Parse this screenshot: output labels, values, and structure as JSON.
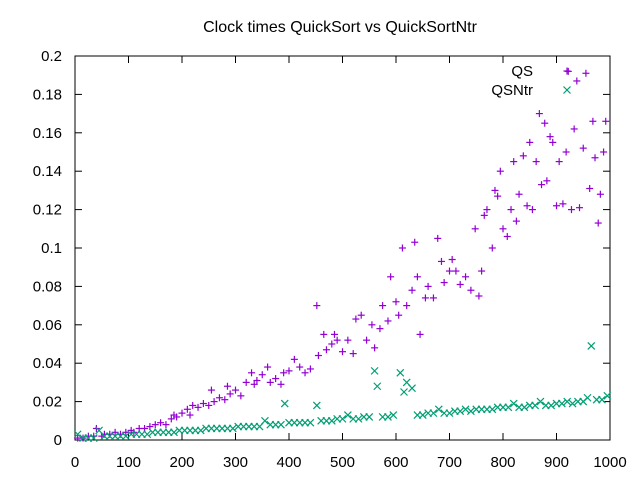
{
  "chart_data": {
    "type": "scatter",
    "title": "Clock times QuickSort vs QuickSortNtr",
    "xlabel": "",
    "ylabel": "",
    "xlim": [
      0,
      1000
    ],
    "ylim": [
      0,
      0.2
    ],
    "x_ticks": [
      0,
      100,
      200,
      300,
      400,
      500,
      600,
      700,
      800,
      900,
      1000
    ],
    "y_ticks": [
      0,
      0.02,
      0.04,
      0.06,
      0.08,
      0.1,
      0.12,
      0.14,
      0.16,
      0.18,
      0.2
    ],
    "grid": false,
    "legend_position": "top-right",
    "series": [
      {
        "name": "QS",
        "marker": "plus",
        "color": "#9400d3",
        "points": [
          [
            5,
            0.001
          ],
          [
            15,
            0.001
          ],
          [
            25,
            0.002
          ],
          [
            35,
            0.002
          ],
          [
            40,
            0.006
          ],
          [
            50,
            0.002
          ],
          [
            55,
            0.003
          ],
          [
            65,
            0.003
          ],
          [
            75,
            0.004
          ],
          [
            85,
            0.003
          ],
          [
            95,
            0.004
          ],
          [
            105,
            0.005
          ],
          [
            110,
            0.004
          ],
          [
            120,
            0.006
          ],
          [
            130,
            0.006
          ],
          [
            140,
            0.007
          ],
          [
            150,
            0.008
          ],
          [
            160,
            0.009
          ],
          [
            170,
            0.008
          ],
          [
            180,
            0.011
          ],
          [
            185,
            0.013
          ],
          [
            190,
            0.012
          ],
          [
            200,
            0.014
          ],
          [
            210,
            0.016
          ],
          [
            215,
            0.013
          ],
          [
            220,
            0.018
          ],
          [
            230,
            0.017
          ],
          [
            240,
            0.019
          ],
          [
            250,
            0.018
          ],
          [
            255,
            0.026
          ],
          [
            260,
            0.02
          ],
          [
            270,
            0.022
          ],
          [
            280,
            0.021
          ],
          [
            285,
            0.028
          ],
          [
            290,
            0.024
          ],
          [
            300,
            0.026
          ],
          [
            310,
            0.023
          ],
          [
            320,
            0.03
          ],
          [
            330,
            0.035
          ],
          [
            335,
            0.029
          ],
          [
            340,
            0.031
          ],
          [
            350,
            0.034
          ],
          [
            360,
            0.038
          ],
          [
            365,
            0.03
          ],
          [
            375,
            0.032
          ],
          [
            385,
            0.029
          ],
          [
            390,
            0.035
          ],
          [
            400,
            0.036
          ],
          [
            410,
            0.042
          ],
          [
            420,
            0.038
          ],
          [
            430,
            0.035
          ],
          [
            440,
            0.037
          ],
          [
            452,
            0.07
          ],
          [
            455,
            0.044
          ],
          [
            465,
            0.055
          ],
          [
            470,
            0.047
          ],
          [
            480,
            0.05
          ],
          [
            485,
            0.055
          ],
          [
            490,
            0.052
          ],
          [
            500,
            0.046
          ],
          [
            510,
            0.052
          ],
          [
            520,
            0.045
          ],
          [
            525,
            0.063
          ],
          [
            535,
            0.065
          ],
          [
            545,
            0.052
          ],
          [
            555,
            0.06
          ],
          [
            560,
            0.048
          ],
          [
            570,
            0.058
          ],
          [
            575,
            0.07
          ],
          [
            585,
            0.062
          ],
          [
            590,
            0.085
          ],
          [
            600,
            0.072
          ],
          [
            605,
            0.065
          ],
          [
            612,
            0.1
          ],
          [
            620,
            0.07
          ],
          [
            630,
            0.078
          ],
          [
            635,
            0.103
          ],
          [
            640,
            0.085
          ],
          [
            645,
            0.055
          ],
          [
            655,
            0.074
          ],
          [
            660,
            0.08
          ],
          [
            670,
            0.074
          ],
          [
            678,
            0.105
          ],
          [
            685,
            0.093
          ],
          [
            690,
            0.082
          ],
          [
            700,
            0.088
          ],
          [
            705,
            0.094
          ],
          [
            712,
            0.088
          ],
          [
            720,
            0.081
          ],
          [
            730,
            0.085
          ],
          [
            740,
            0.078
          ],
          [
            748,
            0.11
          ],
          [
            755,
            0.075
          ],
          [
            760,
            0.088
          ],
          [
            765,
            0.117
          ],
          [
            770,
            0.12
          ],
          [
            780,
            0.1
          ],
          [
            785,
            0.13
          ],
          [
            790,
            0.127
          ],
          [
            795,
            0.14
          ],
          [
            800,
            0.11
          ],
          [
            808,
            0.106
          ],
          [
            815,
            0.12
          ],
          [
            820,
            0.145
          ],
          [
            825,
            0.114
          ],
          [
            830,
            0.128
          ],
          [
            838,
            0.148
          ],
          [
            845,
            0.122
          ],
          [
            850,
            0.155
          ],
          [
            855,
            0.12
          ],
          [
            862,
            0.145
          ],
          [
            868,
            0.17
          ],
          [
            872,
            0.133
          ],
          [
            878,
            0.165
          ],
          [
            882,
            0.135
          ],
          [
            888,
            0.158
          ],
          [
            893,
            0.155
          ],
          [
            900,
            0.122
          ],
          [
            905,
            0.145
          ],
          [
            912,
            0.123
          ],
          [
            918,
            0.15
          ],
          [
            922,
            0.192
          ],
          [
            928,
            0.12
          ],
          [
            933,
            0.162
          ],
          [
            938,
            0.187
          ],
          [
            943,
            0.121
          ],
          [
            950,
            0.152
          ],
          [
            955,
            0.191
          ],
          [
            962,
            0.131
          ],
          [
            968,
            0.166
          ],
          [
            972,
            0.147
          ],
          [
            978,
            0.113
          ],
          [
            982,
            0.128
          ],
          [
            988,
            0.15
          ],
          [
            992,
            0.166
          ]
        ]
      },
      {
        "name": "QSNtr",
        "marker": "cross",
        "color": "#009e73",
        "points": [
          [
            5,
            0.003
          ],
          [
            15,
            0.001
          ],
          [
            25,
            0.001
          ],
          [
            35,
            0.001
          ],
          [
            45,
            0.005
          ],
          [
            55,
            0.002
          ],
          [
            65,
            0.002
          ],
          [
            75,
            0.002
          ],
          [
            85,
            0.002
          ],
          [
            95,
            0.002
          ],
          [
            105,
            0.003
          ],
          [
            115,
            0.003
          ],
          [
            125,
            0.003
          ],
          [
            135,
            0.003
          ],
          [
            145,
            0.004
          ],
          [
            155,
            0.004
          ],
          [
            165,
            0.004
          ],
          [
            175,
            0.004
          ],
          [
            185,
            0.004
          ],
          [
            195,
            0.005
          ],
          [
            205,
            0.005
          ],
          [
            215,
            0.005
          ],
          [
            225,
            0.005
          ],
          [
            235,
            0.005
          ],
          [
            245,
            0.006
          ],
          [
            255,
            0.006
          ],
          [
            265,
            0.006
          ],
          [
            275,
            0.006
          ],
          [
            285,
            0.006
          ],
          [
            295,
            0.006
          ],
          [
            305,
            0.007
          ],
          [
            315,
            0.007
          ],
          [
            325,
            0.007
          ],
          [
            335,
            0.007
          ],
          [
            345,
            0.007
          ],
          [
            355,
            0.01
          ],
          [
            365,
            0.008
          ],
          [
            375,
            0.008
          ],
          [
            385,
            0.008
          ],
          [
            392,
            0.019
          ],
          [
            400,
            0.009
          ],
          [
            410,
            0.009
          ],
          [
            420,
            0.009
          ],
          [
            430,
            0.009
          ],
          [
            440,
            0.009
          ],
          [
            452,
            0.018
          ],
          [
            460,
            0.01
          ],
          [
            470,
            0.01
          ],
          [
            480,
            0.01
          ],
          [
            490,
            0.011
          ],
          [
            500,
            0.011
          ],
          [
            510,
            0.013
          ],
          [
            520,
            0.011
          ],
          [
            530,
            0.011
          ],
          [
            540,
            0.012
          ],
          [
            550,
            0.012
          ],
          [
            560,
            0.036
          ],
          [
            565,
            0.028
          ],
          [
            575,
            0.012
          ],
          [
            585,
            0.012
          ],
          [
            595,
            0.013
          ],
          [
            608,
            0.035
          ],
          [
            615,
            0.025
          ],
          [
            620,
            0.03
          ],
          [
            630,
            0.027
          ],
          [
            640,
            0.013
          ],
          [
            650,
            0.013
          ],
          [
            660,
            0.014
          ],
          [
            670,
            0.014
          ],
          [
            680,
            0.016
          ],
          [
            690,
            0.014
          ],
          [
            700,
            0.014
          ],
          [
            710,
            0.015
          ],
          [
            720,
            0.015
          ],
          [
            730,
            0.016
          ],
          [
            740,
            0.015
          ],
          [
            750,
            0.016
          ],
          [
            760,
            0.016
          ],
          [
            770,
            0.016
          ],
          [
            780,
            0.016
          ],
          [
            790,
            0.017
          ],
          [
            800,
            0.017
          ],
          [
            810,
            0.017
          ],
          [
            820,
            0.019
          ],
          [
            830,
            0.017
          ],
          [
            840,
            0.017
          ],
          [
            850,
            0.018
          ],
          [
            860,
            0.018
          ],
          [
            870,
            0.02
          ],
          [
            880,
            0.018
          ],
          [
            890,
            0.018
          ],
          [
            900,
            0.019
          ],
          [
            910,
            0.019
          ],
          [
            920,
            0.02
          ],
          [
            930,
            0.019
          ],
          [
            940,
            0.02
          ],
          [
            950,
            0.02
          ],
          [
            958,
            0.022
          ],
          [
            965,
            0.049
          ],
          [
            975,
            0.021
          ],
          [
            985,
            0.021
          ],
          [
            995,
            0.023
          ]
        ]
      }
    ]
  }
}
